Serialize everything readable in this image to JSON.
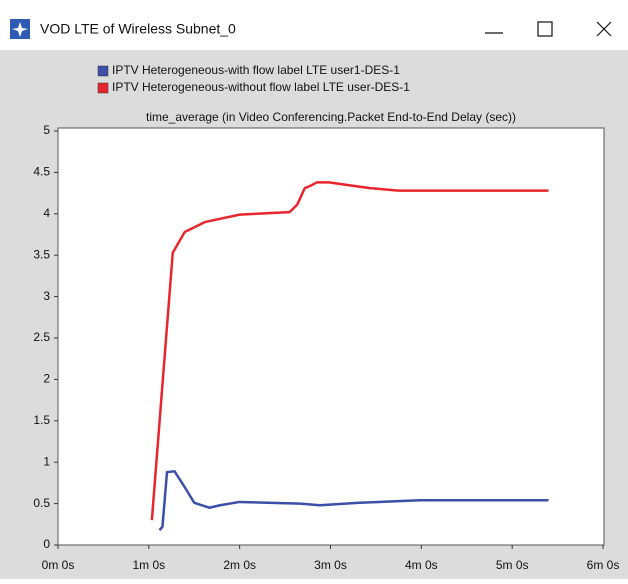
{
  "window": {
    "title": "VOD LTE of Wireless Subnet_0"
  },
  "chart_data": {
    "type": "line",
    "title": "time_average (in Video Conferencing.Packet End-to-End Delay (sec))",
    "legend": "top",
    "series": [
      {
        "name": "IPTV  Heterogeneous-with flow label LTE user1-DES-1",
        "color": "#3b4fa8",
        "x": [
          67,
          69,
          72,
          77,
          84,
          90,
          100,
          107,
          120,
          160,
          173,
          199,
          225,
          239,
          324
        ],
        "values": [
          0.18,
          0.22,
          0.88,
          0.89,
          0.69,
          0.51,
          0.45,
          0.48,
          0.52,
          0.5,
          0.48,
          0.51,
          0.53,
          0.54,
          0.54
        ]
      },
      {
        "name": "IPTV  Heterogeneous-without flow label LTE user-DES-1",
        "color": "#e8262d",
        "x": [
          62,
          75.8,
          83.7,
          97,
          120,
          153,
          158,
          163,
          167,
          171,
          179,
          206,
          225,
          291,
          324
        ],
        "values": [
          0.3,
          3.53,
          3.78,
          3.9,
          3.99,
          4.02,
          4.11,
          4.31,
          4.34,
          4.38,
          4.38,
          4.31,
          4.28,
          4.28,
          4.28
        ]
      }
    ],
    "xlim": [
      0,
      360
    ],
    "xticks": [
      {
        "value": 0,
        "label": "0m 0s"
      },
      {
        "value": 60,
        "label": "1m 0s"
      },
      {
        "value": 120,
        "label": "2m 0s"
      },
      {
        "value": 180,
        "label": "3m 0s"
      },
      {
        "value": 240,
        "label": "4m 0s"
      },
      {
        "value": 300,
        "label": "5m 0s"
      },
      {
        "value": 360,
        "label": "6m 0s"
      }
    ],
    "ylim": [
      0,
      5
    ],
    "yticks": [
      0,
      0.5,
      1,
      1.5,
      2,
      2.5,
      3,
      3.5,
      4,
      4.5,
      5
    ]
  }
}
